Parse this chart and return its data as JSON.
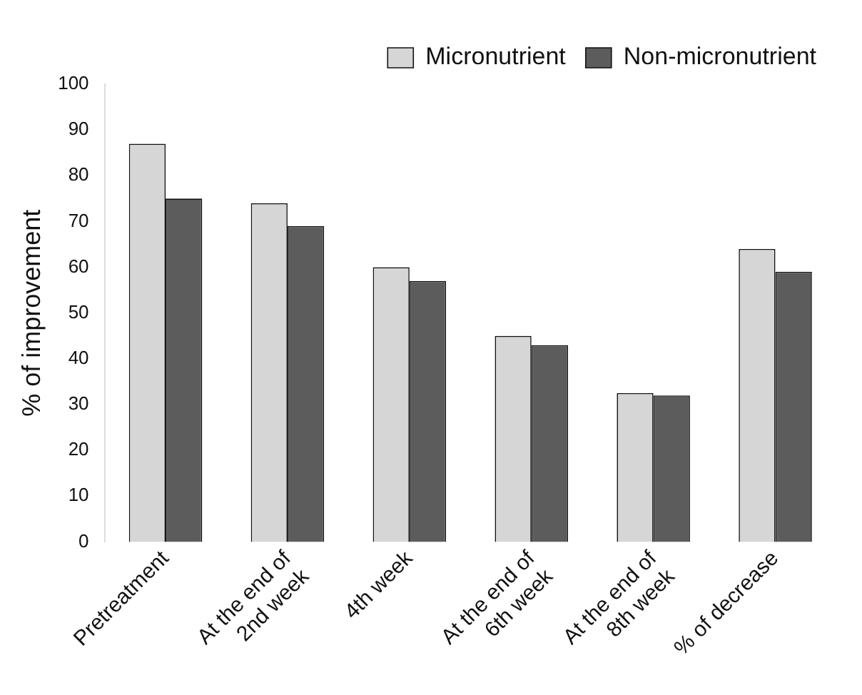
{
  "chart_data": {
    "type": "bar",
    "ylabel": "% of improvement",
    "categories": [
      "Pretreatment",
      "At the end of 2nd week",
      "4th week",
      "At the end of 6th week",
      "At the end of 8th week",
      "% of decrease"
    ],
    "series": [
      {
        "name": "Micronutrient",
        "color": "#d6d6d6",
        "values": [
          87,
          74,
          60,
          45,
          32.5,
          64
        ]
      },
      {
        "name": "Non-micronutrient",
        "color": "#5c5c5c",
        "values": [
          75,
          69,
          57,
          43,
          32,
          59
        ]
      }
    ],
    "ylim": [
      0,
      100
    ],
    "yticks": [
      0,
      10,
      20,
      30,
      40,
      50,
      60,
      70,
      80,
      90,
      100
    ],
    "grid": false,
    "legend": "top right"
  }
}
